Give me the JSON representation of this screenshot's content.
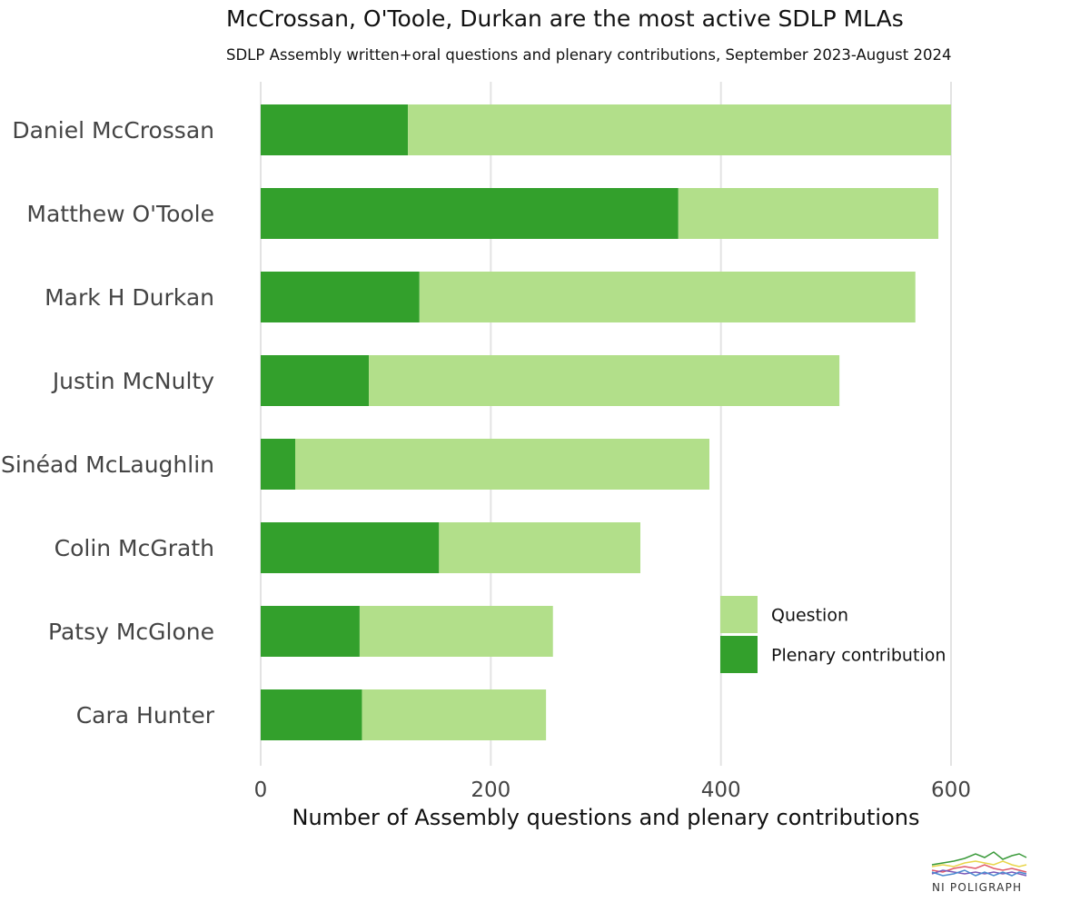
{
  "chart_data": {
    "type": "bar",
    "stacked": true,
    "orientation": "horizontal",
    "title": "McCrossan, O'Toole, Durkan are the most active SDLP MLAs",
    "subtitle": "SDLP Assembly written+oral questions and plenary contributions, September 2023-August 2024",
    "xlabel": "Number of Assembly questions and plenary contributions",
    "ylabel": "",
    "xlim": [
      0,
      660
    ],
    "xticks": [
      0,
      200,
      400,
      600
    ],
    "xtick_labels": [
      "0",
      "200",
      "400",
      "600"
    ],
    "grid": true,
    "legend_position": "bottom-right",
    "categories": [
      "Daniel McCrossan",
      "Matthew O'Toole",
      "Mark H Durkan",
      "Justin McNulty",
      "Sinéad McLaughlin",
      "Colin McGrath",
      "Patsy McGlone",
      "Cara Hunter"
    ],
    "series": [
      {
        "name": "Plenary contribution",
        "color": "#33a02c",
        "values": [
          128,
          363,
          138,
          94,
          30,
          155,
          86,
          88
        ]
      },
      {
        "name": "Question",
        "color": "#b2df8a",
        "values": [
          472,
          226,
          431,
          409,
          360,
          175,
          168,
          160
        ]
      }
    ],
    "legend_order": [
      "Question",
      "Plenary contribution"
    ]
  },
  "branding": {
    "logo_icon": "line-chart-logo-icon",
    "logo_text": "NI POLIGRAPH"
  }
}
